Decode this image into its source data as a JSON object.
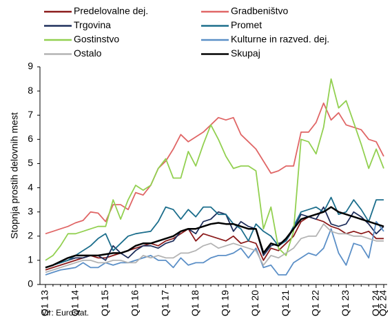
{
  "chart_data": {
    "type": "line",
    "y_label": "Stopnja prostih delovnih mest",
    "source": "Vir: Eurostat.",
    "categories": [
      "Q1 13",
      null,
      null,
      null,
      "Q1 14",
      null,
      null,
      null,
      "Q1 15",
      null,
      null,
      null,
      "Q1 16",
      null,
      null,
      null,
      "Q1 17",
      null,
      null,
      null,
      "Q1 18",
      null,
      null,
      null,
      "Q1 19",
      null,
      null,
      null,
      "Q1 20",
      null,
      null,
      null,
      "Q1 21",
      null,
      null,
      null,
      "Q1 22",
      null,
      null,
      null,
      "Q1 23",
      null,
      null,
      null,
      "Q1 24",
      "Q2 24"
    ],
    "ylim": [
      0,
      9
    ],
    "yticks": [
      0,
      1,
      2,
      3,
      4,
      5,
      6,
      7,
      8,
      9
    ],
    "grid": false,
    "series": [
      {
        "name": "Predelovalne dej.",
        "color": "#8b1a1a",
        "values": [
          0.6,
          0.7,
          0.8,
          0.9,
          1.0,
          1.1,
          1.2,
          1.1,
          1.1,
          1.2,
          1.3,
          1.4,
          1.5,
          1.6,
          1.7,
          1.6,
          1.8,
          1.9,
          2.1,
          2.3,
          1.8,
          2.1,
          2.0,
          1.9,
          1.8,
          2.0,
          1.7,
          1.8,
          1.7,
          1.0,
          1.5,
          1.4,
          1.7,
          2.0,
          2.6,
          2.8,
          2.7,
          2.6,
          2.4,
          2.3,
          2.1,
          2.2,
          2.1,
          2.2,
          1.9,
          1.9
        ]
      },
      {
        "name": "Gradbeništvo",
        "color": "#e06666",
        "values": [
          2.1,
          2.2,
          2.3,
          2.4,
          2.55,
          2.65,
          3.0,
          2.95,
          2.6,
          3.3,
          3.3,
          3.1,
          3.8,
          3.7,
          4.1,
          4.8,
          5.1,
          5.6,
          6.2,
          5.9,
          6.1,
          6.3,
          6.6,
          6.9,
          6.8,
          6.9,
          6.2,
          5.9,
          5.6,
          5.1,
          4.6,
          4.7,
          4.9,
          4.9,
          6.3,
          6.3,
          6.7,
          7.5,
          6.8,
          7.1,
          6.6,
          6.5,
          6.4,
          6.0,
          5.9,
          5.3
        ]
      },
      {
        "name": "Trgovina",
        "color": "#1f2f5c",
        "values": [
          0.7,
          0.8,
          0.9,
          1.0,
          1.1,
          1.1,
          1.2,
          1.2,
          1.0,
          1.6,
          1.3,
          1.1,
          1.4,
          1.6,
          1.6,
          1.5,
          1.7,
          1.8,
          2.2,
          2.3,
          2.1,
          2.6,
          2.7,
          3.0,
          2.9,
          2.2,
          2.6,
          2.4,
          2.3,
          1.2,
          1.6,
          1.7,
          1.8,
          2.3,
          2.9,
          2.8,
          2.7,
          3.2,
          2.5,
          2.4,
          2.5,
          3.0,
          2.8,
          2.5,
          2.1,
          2.4
        ]
      },
      {
        "name": "Promet",
        "color": "#1c6e8c",
        "values": [
          0.7,
          0.8,
          0.9,
          1.0,
          1.2,
          1.4,
          1.6,
          1.9,
          2.1,
          1.4,
          1.7,
          2.0,
          2.1,
          2.15,
          2.2,
          2.6,
          3.2,
          3.1,
          2.7,
          3.1,
          2.8,
          3.2,
          3.2,
          2.9,
          2.9,
          2.5,
          2.3,
          1.8,
          2.5,
          2.2,
          2.0,
          1.6,
          1.8,
          2.4,
          3.0,
          3.1,
          3.2,
          3.0,
          3.6,
          2.9,
          3.0,
          3.5,
          3.1,
          2.6,
          3.5,
          3.5
        ]
      },
      {
        "name": "Gostinstvo",
        "color": "#92d050",
        "values": [
          1.0,
          1.2,
          1.6,
          2.1,
          2.1,
          2.2,
          2.3,
          2.4,
          2.4,
          3.5,
          2.7,
          3.5,
          4.1,
          3.9,
          4.1,
          4.8,
          5.2,
          4.4,
          4.4,
          5.5,
          4.9,
          5.8,
          6.6,
          6.0,
          5.3,
          4.8,
          4.9,
          4.9,
          4.7,
          2.3,
          3.2,
          1.5,
          1.2,
          2.2,
          6.0,
          5.9,
          5.4,
          6.5,
          8.5,
          7.3,
          7.6,
          6.7,
          5.8,
          4.8,
          5.6,
          4.8
        ]
      },
      {
        "name": "Kulturne in razved. dej.",
        "color": "#5b8fc7",
        "values": [
          0.4,
          0.5,
          0.6,
          0.65,
          0.7,
          0.9,
          0.7,
          0.7,
          0.9,
          0.8,
          0.9,
          0.9,
          1.0,
          1.1,
          1.2,
          1.0,
          1.0,
          0.7,
          1.1,
          0.8,
          0.9,
          0.9,
          1.1,
          1.2,
          1.2,
          1.3,
          1.5,
          1.1,
          1.5,
          0.7,
          0.8,
          0.4,
          0.4,
          0.9,
          1.1,
          1.3,
          1.2,
          1.5,
          2.3,
          1.3,
          0.8,
          1.7,
          1.6,
          1.1,
          2.6,
          2.2
        ]
      },
      {
        "name": "Ostalo",
        "color": "#b3b3b3",
        "values": [
          0.5,
          0.6,
          0.7,
          0.8,
          0.9,
          1.0,
          1.0,
          0.9,
          0.9,
          1.0,
          1.0,
          0.9,
          0.9,
          1.2,
          1.1,
          1.2,
          1.1,
          1.1,
          1.3,
          1.3,
          1.4,
          1.6,
          1.7,
          1.5,
          1.6,
          1.7,
          1.6,
          1.5,
          1.4,
          0.8,
          1.2,
          1.1,
          1.3,
          1.5,
          1.9,
          2.0,
          2.0,
          2.5,
          2.2,
          2.1,
          2.1,
          2.0,
          2.0,
          1.9,
          1.8,
          1.8
        ]
      },
      {
        "name": "Skupaj",
        "color": "#000000",
        "width": 2.5,
        "values": [
          0.7,
          0.8,
          0.95,
          1.1,
          1.2,
          1.2,
          1.2,
          1.2,
          1.25,
          1.3,
          1.3,
          1.4,
          1.6,
          1.7,
          1.7,
          1.8,
          1.9,
          2.0,
          2.2,
          2.3,
          2.3,
          2.4,
          2.5,
          2.55,
          2.5,
          2.5,
          2.4,
          2.3,
          2.3,
          1.3,
          1.7,
          1.6,
          1.9,
          2.3,
          2.7,
          2.8,
          2.9,
          3.0,
          3.2,
          3.0,
          2.9,
          2.8,
          2.7,
          2.6,
          2.5,
          2.4
        ]
      }
    ]
  }
}
